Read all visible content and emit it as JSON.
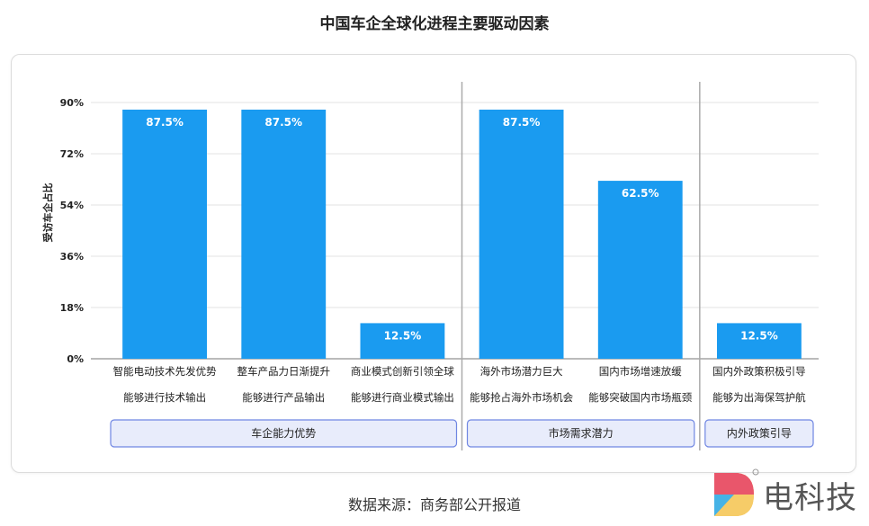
{
  "title": "中国车企全球化进程主要驱动因素",
  "source": "数据来源：商务部公开报道",
  "logo": {
    "text": "电科技"
  },
  "chart_data": {
    "type": "bar",
    "ylabel": "受访车企占比",
    "ylim": [
      0,
      90
    ],
    "yticks": [
      "0%",
      "18%",
      "36%",
      "54%",
      "72%",
      "90%"
    ],
    "ytick_values": [
      0,
      18,
      36,
      54,
      72,
      90
    ],
    "color": "#1a9bf0",
    "categories": [
      "智能电动技术先发优势",
      "整车产品力日渐提升",
      "商业模式创新引领全球",
      "海外市场潜力巨大",
      "国内市场增速放缓",
      "国内外政策积极引导"
    ],
    "subcategories": [
      "能够进行技术输出",
      "能够进行产品输出",
      "能够进行商业模式输出",
      "能够抢占海外市场机会",
      "能够突破国内市场瓶颈",
      "能够为出海保驾护航"
    ],
    "values": [
      87.5,
      87.5,
      12.5,
      87.5,
      62.5,
      12.5
    ],
    "value_labels": [
      "87.5%",
      "87.5%",
      "12.5%",
      "87.5%",
      "62.5%",
      "12.5%"
    ],
    "groups": [
      {
        "label": "车企能力优势",
        "count": 3
      },
      {
        "label": "市场需求潜力",
        "count": 2
      },
      {
        "label": "内外政策引导",
        "count": 1
      }
    ],
    "grid": true
  }
}
